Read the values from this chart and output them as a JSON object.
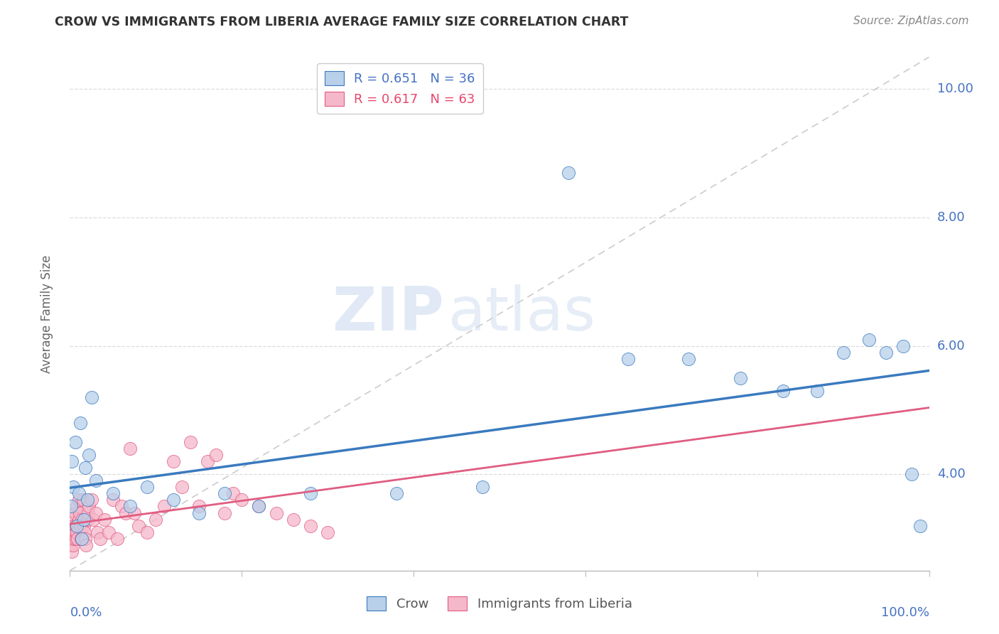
{
  "title": "CROW VS IMMIGRANTS FROM LIBERIA AVERAGE FAMILY SIZE CORRELATION CHART",
  "source": "Source: ZipAtlas.com",
  "ylabel": "Average Family Size",
  "watermark_zip": "ZIP",
  "watermark_atlas": "atlas",
  "crow_R": 0.651,
  "crow_N": 36,
  "liberia_R": 0.617,
  "liberia_N": 63,
  "crow_color": "#b8d0ea",
  "crow_line_color": "#3a7abf",
  "liberia_color": "#f5b8cb",
  "liberia_line_color": "#e05c80",
  "crow_scatter_x": [
    0.001,
    0.002,
    0.004,
    0.006,
    0.008,
    0.01,
    0.012,
    0.014,
    0.016,
    0.018,
    0.02,
    0.022,
    0.025,
    0.03,
    0.05,
    0.07,
    0.09,
    0.12,
    0.15,
    0.18,
    0.22,
    0.28,
    0.38,
    0.48,
    0.58,
    0.65,
    0.72,
    0.78,
    0.83,
    0.87,
    0.9,
    0.93,
    0.95,
    0.97,
    0.98,
    0.99
  ],
  "crow_scatter_y": [
    3.5,
    4.2,
    3.8,
    4.5,
    3.2,
    3.7,
    4.8,
    3.0,
    3.3,
    4.1,
    3.6,
    4.3,
    5.2,
    3.9,
    3.7,
    3.5,
    3.8,
    3.6,
    3.4,
    3.7,
    3.5,
    3.7,
    3.7,
    3.8,
    8.7,
    5.8,
    5.8,
    5.5,
    5.3,
    5.3,
    5.9,
    6.1,
    5.9,
    6.0,
    4.0,
    3.2
  ],
  "liberia_scatter_x": [
    0.001,
    0.001,
    0.001,
    0.002,
    0.002,
    0.003,
    0.003,
    0.004,
    0.004,
    0.005,
    0.005,
    0.006,
    0.006,
    0.007,
    0.007,
    0.008,
    0.008,
    0.009,
    0.01,
    0.01,
    0.011,
    0.012,
    0.013,
    0.014,
    0.015,
    0.016,
    0.017,
    0.018,
    0.019,
    0.02,
    0.021,
    0.022,
    0.025,
    0.027,
    0.03,
    0.032,
    0.035,
    0.04,
    0.045,
    0.05,
    0.055,
    0.06,
    0.065,
    0.07,
    0.075,
    0.08,
    0.09,
    0.1,
    0.11,
    0.12,
    0.13,
    0.14,
    0.15,
    0.16,
    0.17,
    0.18,
    0.19,
    0.2,
    0.22,
    0.24,
    0.26,
    0.28,
    0.3
  ],
  "liberia_scatter_y": [
    3.1,
    3.0,
    2.9,
    3.2,
    2.8,
    3.0,
    3.3,
    2.9,
    3.1,
    3.0,
    3.2,
    3.1,
    3.4,
    3.0,
    3.2,
    3.1,
    3.5,
    3.0,
    3.3,
    3.6,
    3.4,
    3.2,
    3.0,
    3.3,
    3.6,
    3.2,
    3.1,
    3.0,
    2.9,
    3.3,
    3.4,
    3.5,
    3.6,
    3.3,
    3.4,
    3.1,
    3.0,
    3.3,
    3.1,
    3.6,
    3.0,
    3.5,
    3.4,
    4.4,
    3.4,
    3.2,
    3.1,
    3.3,
    3.5,
    4.2,
    3.8,
    4.5,
    3.5,
    4.2,
    4.3,
    3.4,
    3.7,
    3.6,
    3.5,
    3.4,
    3.3,
    3.2,
    3.1
  ],
  "xlim": [
    0,
    1.0
  ],
  "ylim": [
    2.5,
    10.5
  ],
  "yticks": [
    4.0,
    6.0,
    8.0,
    10.0
  ],
  "background_color": "#ffffff",
  "grid_color": "#dddddd"
}
